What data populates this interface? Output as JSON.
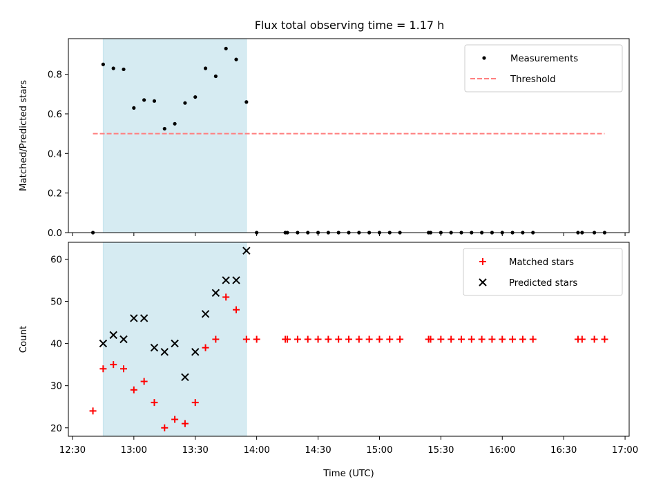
{
  "figure": {
    "title": "Flux total observing time = 1.17 h"
  },
  "chart_data": [
    {
      "type": "scatter",
      "title": "Flux total observing time = 1.17 h",
      "xlabel": "",
      "ylabel": "Matched/Predicted stars",
      "xlim": [
        "12:28",
        "17:02"
      ],
      "ylim": [
        0,
        0.98
      ],
      "yticks": [
        0.0,
        0.2,
        0.4,
        0.6,
        0.8
      ],
      "ytick_labels": [
        "0.0",
        "0.2",
        "0.4",
        "0.6",
        "0.8"
      ],
      "grid": false,
      "legend_position": "top-right",
      "shaded_interval": {
        "x_start": "12:45",
        "x_end": "13:55",
        "color": "#add8e6"
      },
      "series": [
        {
          "name": "Measurements",
          "style": "dots",
          "color": "#000000",
          "points": [
            [
              "12:40",
              0.0
            ],
            [
              "12:45",
              0.85
            ],
            [
              "12:50",
              0.83
            ],
            [
              "12:55",
              0.825
            ],
            [
              "13:00",
              0.63
            ],
            [
              "13:05",
              0.67
            ],
            [
              "13:10",
              0.665
            ],
            [
              "13:15",
              0.525
            ],
            [
              "13:20",
              0.55
            ],
            [
              "13:25",
              0.655
            ],
            [
              "13:30",
              0.685
            ],
            [
              "13:35",
              0.83
            ],
            [
              "13:40",
              0.79
            ],
            [
              "13:45",
              0.93
            ],
            [
              "13:50",
              0.875
            ],
            [
              "13:55",
              0.66
            ],
            [
              "14:00",
              0.0
            ],
            [
              "14:14",
              0.0
            ],
            [
              "14:15",
              0.0
            ],
            [
              "14:20",
              0.0
            ],
            [
              "14:25",
              0.0
            ],
            [
              "14:30",
              0.0
            ],
            [
              "14:35",
              0.0
            ],
            [
              "14:40",
              0.0
            ],
            [
              "14:45",
              0.0
            ],
            [
              "14:50",
              0.0
            ],
            [
              "14:55",
              0.0
            ],
            [
              "15:00",
              0.0
            ],
            [
              "15:05",
              0.0
            ],
            [
              "15:10",
              0.0
            ],
            [
              "15:24",
              0.0
            ],
            [
              "15:25",
              0.0
            ],
            [
              "15:30",
              0.0
            ],
            [
              "15:35",
              0.0
            ],
            [
              "15:40",
              0.0
            ],
            [
              "15:45",
              0.0
            ],
            [
              "15:50",
              0.0
            ],
            [
              "15:55",
              0.0
            ],
            [
              "16:00",
              0.0
            ],
            [
              "16:05",
              0.0
            ],
            [
              "16:10",
              0.0
            ],
            [
              "16:15",
              0.0
            ],
            [
              "16:37",
              0.0
            ],
            [
              "16:39",
              0.0
            ],
            [
              "16:45",
              0.0
            ],
            [
              "16:50",
              0.0
            ]
          ]
        },
        {
          "name": "Threshold",
          "style": "dashed-line",
          "color": "#ff7f7f",
          "points": [
            [
              "12:40",
              0.5
            ],
            [
              "16:50",
              0.5
            ]
          ]
        }
      ]
    },
    {
      "type": "scatter",
      "title": "",
      "xlabel": "Time (UTC)",
      "ylabel": "Count",
      "xlim": [
        "12:28",
        "17:02"
      ],
      "ylim": [
        18,
        64
      ],
      "yticks": [
        20,
        30,
        40,
        50,
        60
      ],
      "ytick_labels": [
        "20",
        "30",
        "40",
        "50",
        "60"
      ],
      "xticks": [
        "12:30",
        "13:00",
        "13:30",
        "14:00",
        "14:30",
        "15:00",
        "15:30",
        "16:00",
        "16:30",
        "17:00"
      ],
      "grid": false,
      "legend_position": "top-right",
      "shaded_interval": {
        "x_start": "12:45",
        "x_end": "13:55",
        "color": "#add8e6"
      },
      "series": [
        {
          "name": "Matched stars",
          "marker": "plus",
          "color": "#ff0000",
          "points": [
            [
              "12:40",
              24
            ],
            [
              "12:45",
              34
            ],
            [
              "12:50",
              35
            ],
            [
              "12:55",
              34
            ],
            [
              "13:00",
              29
            ],
            [
              "13:05",
              31
            ],
            [
              "13:10",
              26
            ],
            [
              "13:15",
              20
            ],
            [
              "13:20",
              22
            ],
            [
              "13:25",
              21
            ],
            [
              "13:30",
              26
            ],
            [
              "13:35",
              39
            ],
            [
              "13:40",
              41
            ],
            [
              "13:45",
              51
            ],
            [
              "13:50",
              48
            ],
            [
              "13:55",
              41
            ],
            [
              "14:00",
              41
            ],
            [
              "14:14",
              41
            ],
            [
              "14:15",
              41
            ],
            [
              "14:20",
              41
            ],
            [
              "14:25",
              41
            ],
            [
              "14:30",
              41
            ],
            [
              "14:35",
              41
            ],
            [
              "14:40",
              41
            ],
            [
              "14:45",
              41
            ],
            [
              "14:50",
              41
            ],
            [
              "14:55",
              41
            ],
            [
              "15:00",
              41
            ],
            [
              "15:05",
              41
            ],
            [
              "15:10",
              41
            ],
            [
              "15:24",
              41
            ],
            [
              "15:25",
              41
            ],
            [
              "15:30",
              41
            ],
            [
              "15:35",
              41
            ],
            [
              "15:40",
              41
            ],
            [
              "15:45",
              41
            ],
            [
              "15:50",
              41
            ],
            [
              "15:55",
              41
            ],
            [
              "16:00",
              41
            ],
            [
              "16:05",
              41
            ],
            [
              "16:10",
              41
            ],
            [
              "16:15",
              41
            ],
            [
              "16:37",
              41
            ],
            [
              "16:39",
              41
            ],
            [
              "16:45",
              41
            ],
            [
              "16:50",
              41
            ]
          ]
        },
        {
          "name": "Predicted stars",
          "marker": "x",
          "color": "#000000",
          "points": [
            [
              "12:45",
              40
            ],
            [
              "12:50",
              42
            ],
            [
              "12:55",
              41
            ],
            [
              "13:00",
              46
            ],
            [
              "13:05",
              46
            ],
            [
              "13:10",
              39
            ],
            [
              "13:15",
              38
            ],
            [
              "13:20",
              40
            ],
            [
              "13:25",
              32
            ],
            [
              "13:30",
              38
            ],
            [
              "13:35",
              47
            ],
            [
              "13:40",
              52
            ],
            [
              "13:45",
              55
            ],
            [
              "13:50",
              55
            ],
            [
              "13:55",
              62
            ]
          ]
        }
      ]
    }
  ]
}
